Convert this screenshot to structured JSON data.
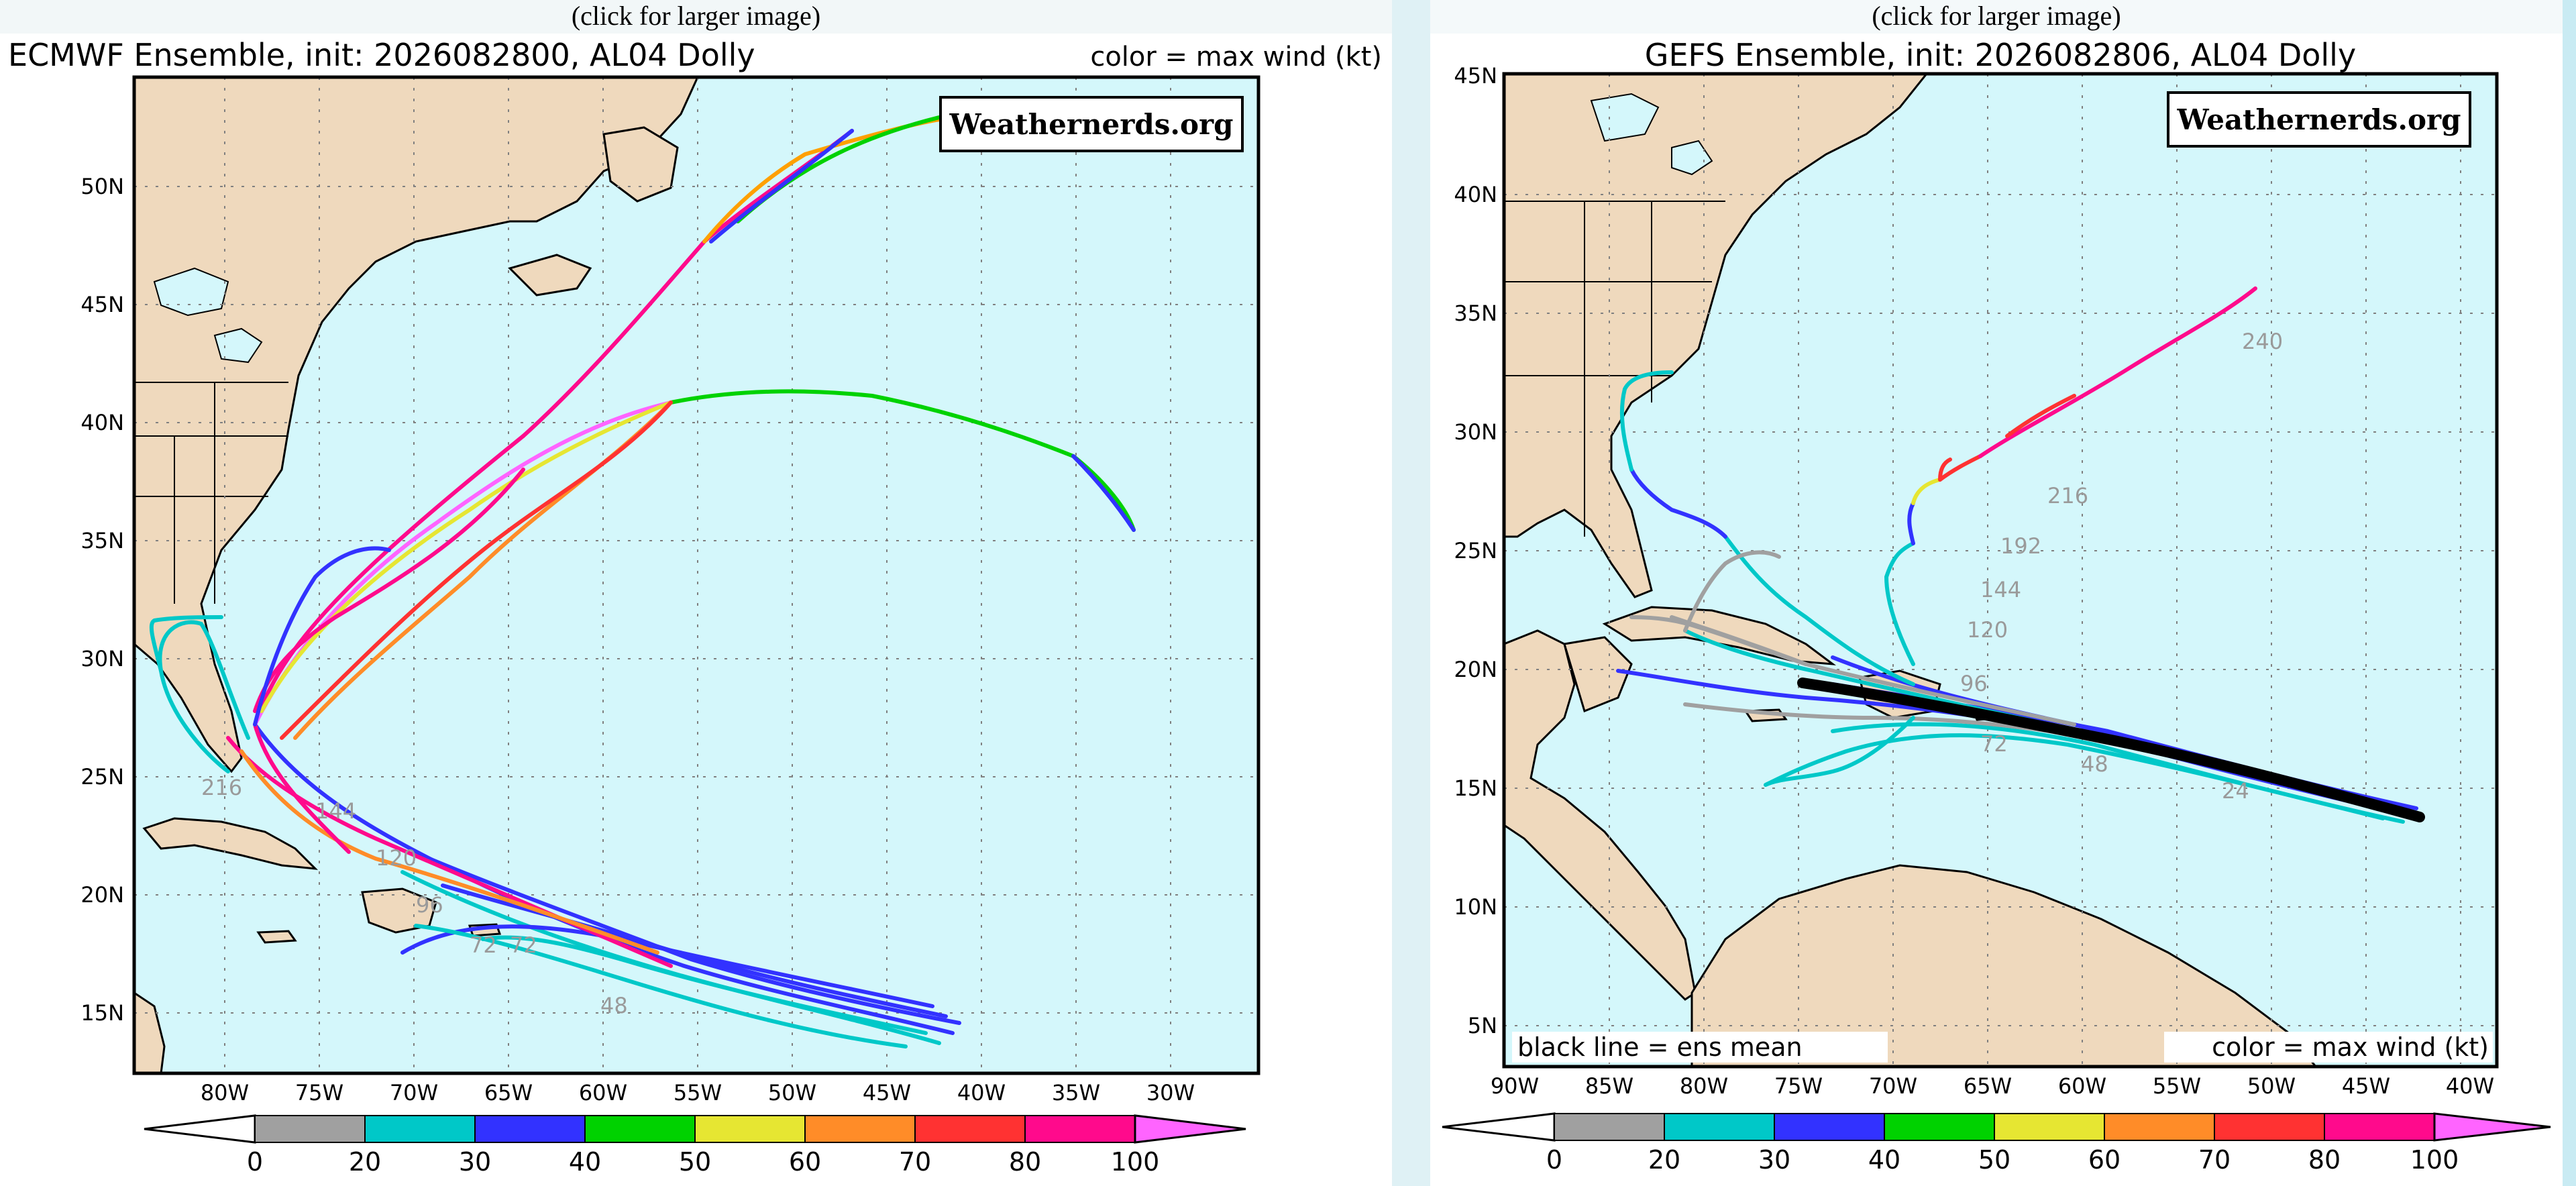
{
  "left": {
    "caption": "(click for larger image)",
    "title": "ECMWF Ensemble, init: 2026082800, AL04 Dolly",
    "legend_note": "color = max wind (kt)",
    "watermark": "Weathernerds.org",
    "lat_labels": [
      "50N",
      "45N",
      "40N",
      "35N",
      "30N",
      "25N",
      "20N",
      "15N"
    ],
    "lon_labels": [
      "80W",
      "75W",
      "70W",
      "65W",
      "60W",
      "55W",
      "50W",
      "45W",
      "40W",
      "35W",
      "30W"
    ],
    "forecast_hour_labels": [
      "216",
      "144",
      "120",
      "96",
      "72",
      "72",
      "48"
    ]
  },
  "right": {
    "caption": "(click for larger image)",
    "title": "GEFS Ensemble, init: 2026082806, AL04 Dolly",
    "watermark": "Weathernerds.org",
    "mean_note": "black line = ens mean",
    "legend_note": "color = max wind (kt)",
    "lat_labels": [
      "45N",
      "40N",
      "35N",
      "30N",
      "25N",
      "20N",
      "15N",
      "10N",
      "5N"
    ],
    "lon_labels": [
      "90W",
      "85W",
      "80W",
      "75W",
      "70W",
      "65W",
      "60W",
      "55W",
      "50W",
      "45W",
      "40W"
    ],
    "forecast_hour_labels": [
      "240",
      "216",
      "192",
      "144",
      "120",
      "96",
      "72",
      "48",
      "24"
    ]
  },
  "colorbar": {
    "ticks": [
      "0",
      "20",
      "30",
      "40",
      "50",
      "60",
      "70",
      "80",
      "100"
    ],
    "colors": [
      "#a0a0a0",
      "#00c8c8",
      "#3232ff",
      "#00d200",
      "#e6e632",
      "#ff8c28",
      "#ff3232",
      "#ff0a8c",
      "#ff64ff"
    ]
  }
}
